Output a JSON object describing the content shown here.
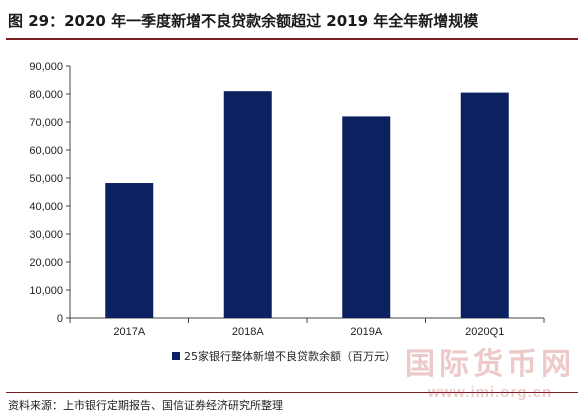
{
  "header": {
    "title": "图 29：2020 年一季度新增不良贷款余额超过 2019 年全年新增规模"
  },
  "chart_data": {
    "type": "bar",
    "categories": [
      "2017A",
      "2018A",
      "2019A",
      "2020Q1"
    ],
    "series": [
      {
        "name": "25家银行整体新增不良贷款余额（百万元）",
        "values": [
          48200,
          81000,
          72000,
          80500
        ]
      }
    ],
    "ylim": [
      0,
      90000
    ],
    "yticks": [
      "0",
      "10,000",
      "20,000",
      "30,000",
      "40,000",
      "50,000",
      "60,000",
      "70,000",
      "80,000",
      "90,000"
    ],
    "grid": false,
    "legend": "bottom",
    "bar_color": "#0b2160"
  },
  "footer": {
    "source": "资料来源：上市银行定期报告、国信证券经济研究所整理"
  },
  "watermark": {
    "main": "国际货币网",
    "sub": "www.imi.org.cn"
  }
}
